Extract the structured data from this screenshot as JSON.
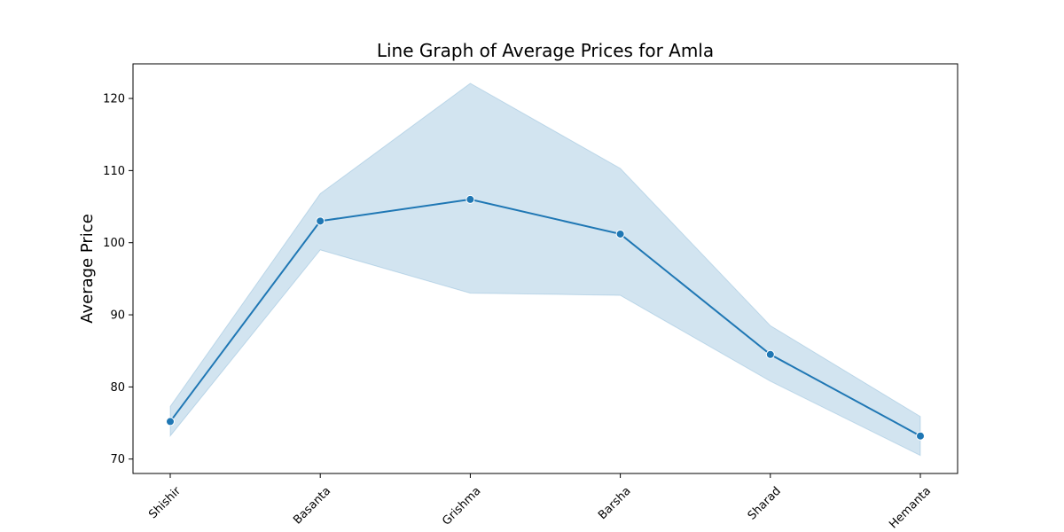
{
  "chart_data": {
    "type": "line",
    "title": "Line Graph of Average Prices for Amla",
    "xlabel": "",
    "ylabel": "Average Price",
    "categories": [
      "Shishir",
      "Basanta",
      "Grishma",
      "Barsha",
      "Sharad",
      "Hemanta"
    ],
    "series": [
      {
        "name": "Average Price",
        "values": [
          75.2,
          103.0,
          106.0,
          101.2,
          84.5,
          73.2
        ],
        "ci_lower": [
          73.2,
          99.0,
          93.0,
          92.7,
          80.8,
          70.5
        ],
        "ci_upper": [
          77.3,
          106.8,
          122.1,
          110.3,
          88.5,
          75.9
        ]
      }
    ],
    "yticks": [
      70,
      80,
      90,
      100,
      110,
      120
    ],
    "ylim": [
      68,
      124.8
    ],
    "grid": false,
    "colors": {
      "line": "#1f77b4",
      "band": "#1f77b4"
    }
  }
}
